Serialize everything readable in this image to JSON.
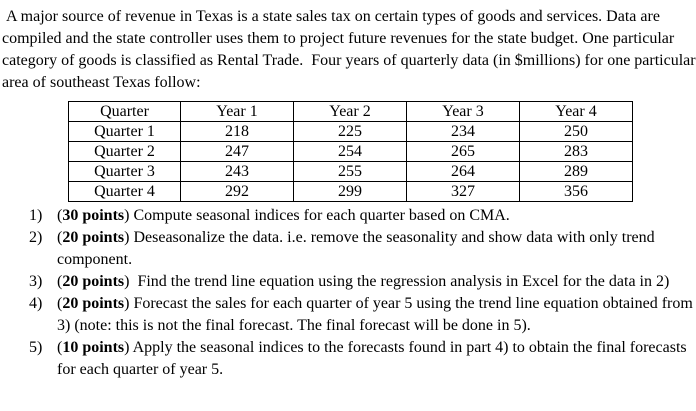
{
  "paragraph": " A major source of revenue in Texas is a state sales tax on certain types of goods and services. Data are compiled and the state controller uses them to project future revenues for the state budget. One particular category of goods is classified as Rental Trade.  Four years of quarterly data (in $millions) for one particular area of southeast Texas follow:",
  "table": {
    "headers": [
      "Quarter",
      "Year 1",
      "Year 2",
      "Year 3",
      "Year 4"
    ],
    "rows": [
      [
        "Quarter 1",
        "218",
        "225",
        "234",
        "250"
      ],
      [
        "Quarter 2",
        "247",
        "254",
        "265",
        "283"
      ],
      [
        "Quarter 3",
        "243",
        "255",
        "264",
        "289"
      ],
      [
        "Quarter 4",
        "292",
        "299",
        "327",
        "356"
      ]
    ]
  },
  "questions": [
    {
      "number": "1)",
      "parts": [
        "(",
        "30 points",
        ") Compute seasonal indices for each quarter based on CMA."
      ]
    },
    {
      "number": "2)",
      "parts": [
        "(",
        "20 points",
        ") Deseasonalize the data. i.e. remove the seasonality and show data with only trend component."
      ]
    },
    {
      "number": "3)",
      "parts": [
        "(",
        "20 points",
        ")  Find the trend line equation using the regression analysis in Excel for the data in 2)"
      ]
    },
    {
      "number": "4)",
      "parts": [
        "(",
        "20 points",
        ") Forecast the sales for each quarter of year 5 using the trend line equation obtained from 3) (note: this is not the final forecast. The final forecast will be done in 5)."
      ]
    },
    {
      "number": "5)",
      "parts": [
        "(",
        "10 points",
        ") Apply the seasonal indices to the forecasts found in part 4) to obtain the final forecasts for each quarter of year 5."
      ]
    }
  ]
}
